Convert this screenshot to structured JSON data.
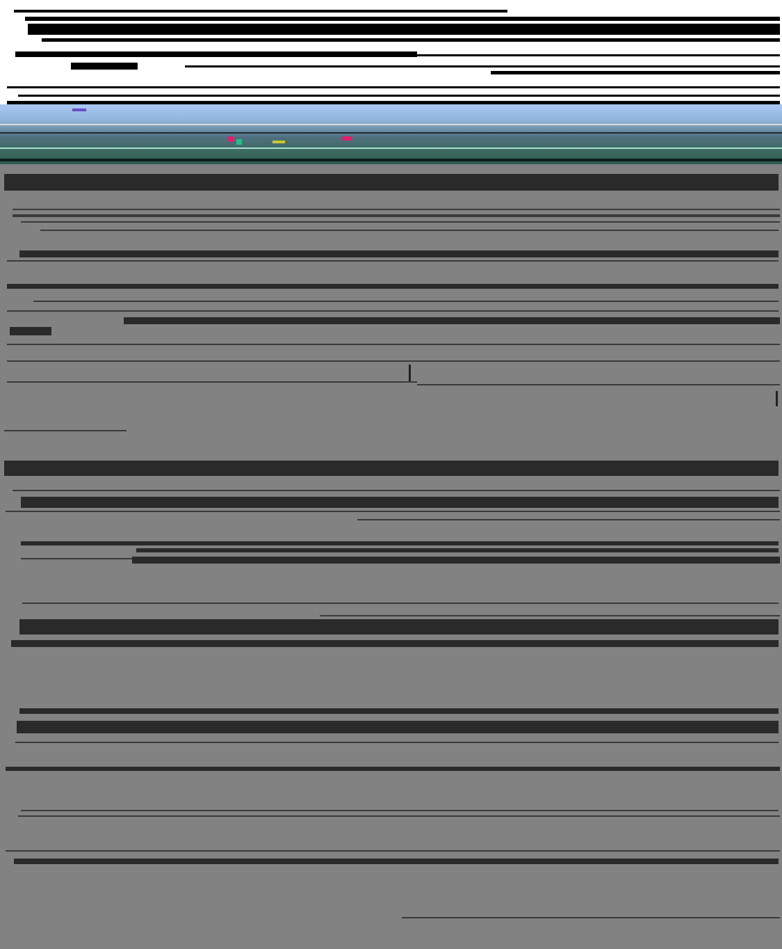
{
  "page": {
    "background": "#828282"
  },
  "header": {
    "background": "#ffffff",
    "rule_color": "#000000"
  },
  "banner": {
    "colors": [
      "#a9c7f2",
      "#8fb4d8",
      "#4f6f7e",
      "#3b6a5e",
      "#2e5a50"
    ],
    "accent_colors": [
      "#e0206a",
      "#22c08a",
      "#c8c82a",
      "#6a4cc8"
    ]
  },
  "content": {
    "line_color": "#2a2a2a"
  }
}
